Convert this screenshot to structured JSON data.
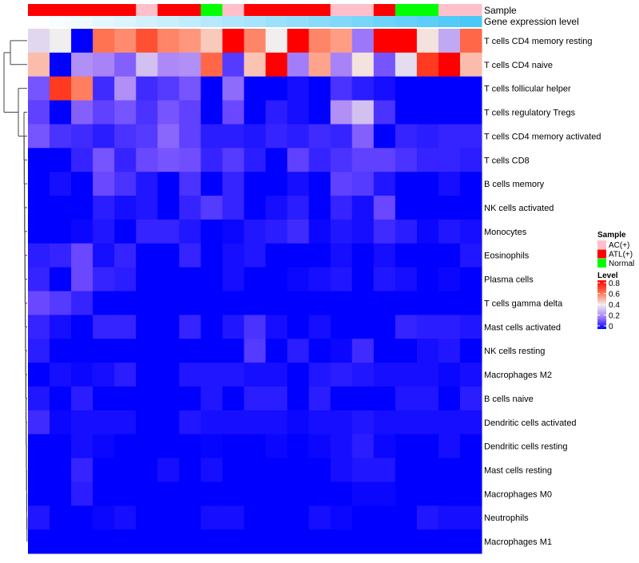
{
  "chart_data": {
    "type": "heatmap",
    "annotation_labels": {
      "sample": "Sample",
      "gene_expression": "Gene expression level"
    },
    "columns_sample": [
      "ATL(+)",
      "ATL(+)",
      "ATL(+)",
      "ATL(+)",
      "ATL(+)",
      "AC(+)",
      "ATL(+)",
      "ATL(+)",
      "Normal",
      "AC(+)",
      "ATL(+)",
      "ATL(+)",
      "ATL(+)",
      "ATL(+)",
      "AC(+)",
      "AC(+)",
      "ATL(+)",
      "Normal",
      "Normal",
      "AC(+)",
      "AC(+)"
    ],
    "gene_expression_level": [
      0,
      0.05,
      0.1,
      0.15,
      0.2,
      0.25,
      0.3,
      0.35,
      0.4,
      0.45,
      0.5,
      0.55,
      0.6,
      0.65,
      0.7,
      0.75,
      0.8,
      0.85,
      0.9,
      0.95,
      1.0
    ],
    "rows": [
      "T cells CD4 memory resting",
      "T cells CD4 naive",
      "T cells follicular helper",
      "T cells regulatory  Tregs",
      "T cells CD4 memory activated",
      "T cells CD8",
      "B cells memory",
      "NK cells activated",
      "Monocytes",
      "Eosinophils",
      "Plasma cells",
      "T cells gamma delta",
      "Mast cells activated",
      "NK cells resting",
      "Macrophages M2",
      "B cells naive",
      "Dendritic cells activated",
      "Dendritic cells resting",
      "Mast cells resting",
      "Macrophages M0",
      "Neutrophils",
      "Macrophages M1"
    ],
    "values": [
      [
        0.35,
        0.4,
        0,
        0.6,
        0.56,
        0.66,
        0.57,
        0.54,
        0.46,
        0.8,
        0.57,
        0.4,
        0.8,
        0.57,
        0.53,
        0.18,
        0.8,
        0.8,
        0.42,
        0.26,
        0.62
      ],
      [
        0.48,
        0,
        0.22,
        0.2,
        0.14,
        0.3,
        0.21,
        0.22,
        0.62,
        0.08,
        0.47,
        0.8,
        0.19,
        0.52,
        0.2,
        0.42,
        0.12,
        0.36,
        0.7,
        0.8,
        0.48
      ],
      [
        0.12,
        0.7,
        0.58,
        0.06,
        0.22,
        0.06,
        0.08,
        0.12,
        0,
        0.16,
        0,
        0,
        0.02,
        0,
        0.07,
        0.04,
        0.02,
        0,
        0,
        0,
        0
      ],
      [
        0.09,
        0,
        0.14,
        0.09,
        0.12,
        0.07,
        0.12,
        0.09,
        0,
        0.1,
        0,
        0.04,
        0.02,
        0,
        0.22,
        0.3,
        0.07,
        0,
        0,
        0,
        0
      ],
      [
        0.12,
        0.07,
        0.06,
        0.04,
        0.07,
        0.08,
        0.15,
        0.09,
        0.04,
        0.04,
        0.03,
        0.05,
        0.04,
        0.06,
        0.05,
        0.14,
        0,
        0.05,
        0.04,
        0.05,
        0.05
      ],
      [
        0,
        0,
        0.05,
        0.12,
        0.05,
        0.1,
        0.12,
        0.11,
        0.05,
        0.08,
        0.04,
        0,
        0.09,
        0.05,
        0.07,
        0.09,
        0.09,
        0.07,
        0.05,
        0.05,
        0.04
      ],
      [
        0,
        0.02,
        0,
        0.1,
        0.07,
        0.03,
        0,
        0.07,
        0,
        0.05,
        0,
        0,
        0.02,
        0,
        0.09,
        0.08,
        0.03,
        0,
        0,
        0.02,
        0
      ],
      [
        0,
        0,
        0,
        0.04,
        0.02,
        0.03,
        0,
        0.05,
        0.08,
        0.05,
        0,
        0.02,
        0.04,
        0,
        0.05,
        0.02,
        0.1,
        0,
        0,
        0,
        0
      ],
      [
        0,
        0,
        0.01,
        0.03,
        0,
        0.05,
        0.05,
        0.03,
        0,
        0.01,
        0.03,
        0.04,
        0.06,
        0.01,
        0.03,
        0.02,
        0.06,
        0.04,
        0.01,
        0.03,
        0.02
      ],
      [
        0.04,
        0.05,
        0.1,
        0.02,
        0.05,
        0,
        0,
        0.05,
        0,
        0.02,
        0.03,
        0,
        0,
        0,
        0.02,
        0,
        0.02,
        0,
        0,
        0,
        0.03
      ],
      [
        0.05,
        0,
        0.1,
        0.05,
        0.04,
        0,
        0,
        0,
        0,
        0.02,
        0,
        0,
        0.01,
        0.02,
        0.03,
        0,
        0.03,
        0.02,
        0,
        0.01,
        0
      ],
      [
        0.1,
        0.08,
        0.05,
        0,
        0,
        0,
        0,
        0,
        0,
        0,
        0,
        0,
        0,
        0,
        0,
        0,
        0,
        0,
        0,
        0,
        0
      ],
      [
        0.05,
        0.02,
        0,
        0.05,
        0.05,
        0,
        0,
        0.05,
        0,
        0.03,
        0.07,
        0.02,
        0,
        0.02,
        0,
        0,
        0,
        0.05,
        0.04,
        0.04,
        0.03
      ],
      [
        0.04,
        0,
        0,
        0,
        0,
        0,
        0,
        0,
        0,
        0,
        0.08,
        0,
        0.04,
        0,
        0.01,
        0.06,
        0,
        0,
        0.02,
        0.03,
        0
      ],
      [
        0,
        0.02,
        0.01,
        0.02,
        0.04,
        0,
        0,
        0.03,
        0.03,
        0.03,
        0.02,
        0.02,
        0,
        0.03,
        0.04,
        0.03,
        0.02,
        0.02,
        0.02,
        0.01,
        0.02
      ],
      [
        0.03,
        0,
        0.04,
        0,
        0,
        0,
        0,
        0,
        0.03,
        0,
        0.04,
        0.04,
        0,
        0.04,
        0,
        0,
        0,
        0.03,
        0.03,
        0,
        0.04
      ],
      [
        0.06,
        0.01,
        0.02,
        0.02,
        0.02,
        0,
        0,
        0.03,
        0.02,
        0.02,
        0.02,
        0.02,
        0.01,
        0.02,
        0.02,
        0.03,
        0.02,
        0.02,
        0.02,
        0.02,
        0.02
      ],
      [
        0,
        0,
        0.02,
        0.01,
        0,
        0,
        0,
        0,
        0.005,
        0,
        0,
        0.01,
        0,
        0.01,
        0.02,
        0.04,
        0.01,
        0,
        0,
        0.02,
        0
      ],
      [
        0,
        0,
        0.05,
        0,
        0,
        0,
        0.02,
        0,
        0.02,
        0,
        0,
        0,
        0,
        0,
        0.02,
        0.03,
        0.03,
        0,
        0,
        0,
        0
      ],
      [
        0,
        0,
        0.04,
        0,
        0,
        0,
        0,
        0,
        0,
        0,
        0,
        0,
        0,
        0,
        0,
        0.01,
        0.01,
        0,
        0,
        0,
        0
      ],
      [
        0.03,
        0,
        0,
        0.01,
        0.02,
        0,
        0,
        0,
        0.02,
        0.02,
        0,
        0,
        0,
        0.02,
        0.01,
        0,
        0,
        0,
        0.03,
        0.02,
        0.02
      ],
      [
        0,
        0,
        0,
        0,
        0,
        0,
        0,
        0,
        0,
        0,
        0,
        0,
        0,
        0,
        0,
        0,
        0,
        0,
        0,
        0,
        0
      ]
    ],
    "legend": {
      "sample_title": "Sample",
      "sample_entries": [
        {
          "label": "AC(+)",
          "color": "#ffc0cb"
        },
        {
          "label": "ATL(+)",
          "color": "#ff0000"
        },
        {
          "label": "Normal",
          "color": "#00ff00"
        }
      ],
      "level_title": "Level",
      "level_ticks": [
        "0.8",
        "0.6",
        "0.4",
        "0.2",
        "0"
      ],
      "level_range": [
        0,
        0.8
      ],
      "placement": "right"
    },
    "colors": {
      "low": "#0000ff",
      "mid": "#f0f0f0",
      "high": "#ff0000",
      "expr_low": "#ffffff",
      "expr_high": "#4ac8f8"
    }
  }
}
